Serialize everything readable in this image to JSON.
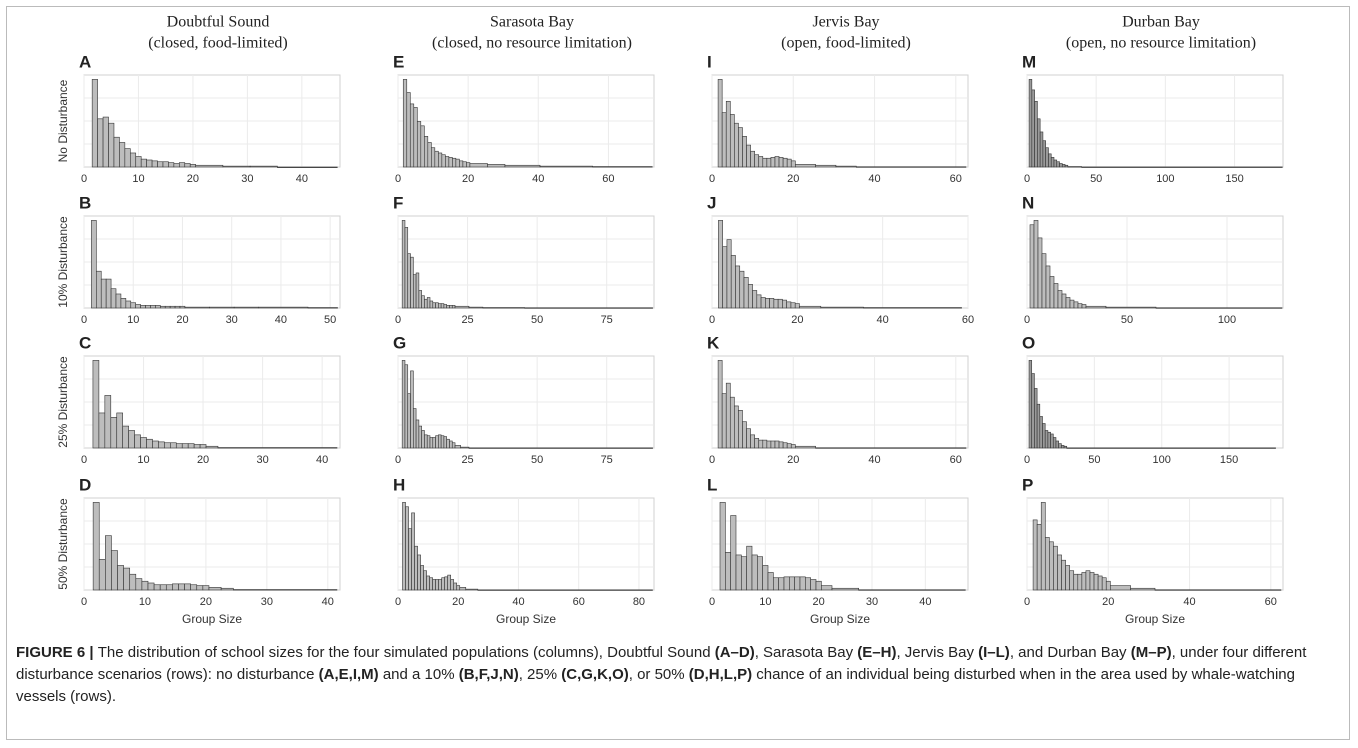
{
  "figure": {
    "columns": [
      {
        "title": "Doubtful Sound",
        "subtitle": "(closed, food-limited)"
      },
      {
        "title": "Sarasota Bay",
        "subtitle": "(closed, no resource limitation)"
      },
      {
        "title": "Jervis Bay",
        "subtitle": "(open, food-limited)"
      },
      {
        "title": "Durban Bay",
        "subtitle": "(open, no resource limitation)"
      }
    ],
    "rows": [
      "No Disturbance",
      "10% Disturbance",
      "25% Disturbance",
      "50% Disturbance"
    ],
    "x_label": "Group Size",
    "caption": [
      {
        "text": "FIGURE 6 | ",
        "bold": true
      },
      {
        "text": "The distribution of school sizes for the four simulated populations (columns), Doubtful Sound ",
        "bold": false
      },
      {
        "text": "(A–D)",
        "bold": true
      },
      {
        "text": ", Sarasota Bay ",
        "bold": false
      },
      {
        "text": "(E–H)",
        "bold": true
      },
      {
        "text": ", Jervis Bay ",
        "bold": false
      },
      {
        "text": "(I–L)",
        "bold": true
      },
      {
        "text": ", and Durban Bay ",
        "bold": false
      },
      {
        "text": "(M–P)",
        "bold": true
      },
      {
        "text": ", under four different disturbance scenarios (rows): no disturbance ",
        "bold": false
      },
      {
        "text": "(A,E,I,M)",
        "bold": true
      },
      {
        "text": " and a 10% ",
        "bold": false
      },
      {
        "text": "(B,F,J,N)",
        "bold": true
      },
      {
        "text": ", 25% ",
        "bold": false
      },
      {
        "text": "(C,G,K,O)",
        "bold": true
      },
      {
        "text": ", or 50% ",
        "bold": false
      },
      {
        "text": "(D,H,L,P)",
        "bold": true
      },
      {
        "text": " chance of an individual being disturbed when in the area used by whale-watching vessels (rows).",
        "bold": false
      }
    ]
  },
  "chart_data": [
    {
      "type": "histogram",
      "panel": "A",
      "color": "#bdbdbd",
      "grid": true,
      "xlim": [
        0,
        47
      ],
      "xticks": [
        0,
        10,
        20,
        30,
        40
      ],
      "ylim": [
        0,
        105
      ],
      "bins": [
        1.5,
        2.5,
        3.5,
        4.5,
        5.5,
        6.5,
        7.5,
        8.5,
        9.5,
        10.5,
        11.5,
        12.5,
        13.5,
        14.5,
        15.5,
        16.5,
        17.5,
        18.5,
        19.5,
        20.5,
        25.5,
        30.5,
        35.5,
        46.5
      ],
      "counts": [
        100,
        55,
        57,
        50,
        34,
        28,
        21,
        16,
        12,
        9,
        8,
        7,
        6,
        6,
        5,
        4,
        5,
        4,
        3,
        2,
        1,
        1,
        0
      ]
    },
    {
      "type": "histogram",
      "panel": "B",
      "color": "#bdbdbd",
      "grid": true,
      "xlim": [
        0,
        52
      ],
      "xticks": [
        0,
        10,
        20,
        30,
        40,
        50
      ],
      "ylim": [
        0,
        105
      ],
      "bins": [
        1.5,
        2.5,
        3.5,
        4.5,
        5.5,
        6.5,
        7.5,
        8.5,
        9.5,
        10.5,
        11.5,
        12.5,
        13.5,
        14.5,
        15.5,
        16.5,
        17.5,
        18.5,
        19.5,
        20.5,
        25.5,
        30.5,
        35.5,
        45.5,
        51.5
      ],
      "counts": [
        100,
        42,
        33,
        33,
        22,
        16,
        11,
        8,
        6,
        4,
        3,
        3,
        3,
        3,
        2,
        2,
        2,
        2,
        2,
        1,
        1,
        1,
        1,
        0.5
      ]
    },
    {
      "type": "histogram",
      "panel": "C",
      "color": "#bdbdbd",
      "grid": true,
      "xlim": [
        0,
        43
      ],
      "xticks": [
        0,
        10,
        20,
        30,
        40
      ],
      "ylim": [
        0,
        105
      ],
      "bins": [
        1.5,
        2.5,
        3.5,
        4.5,
        5.5,
        6.5,
        7.5,
        8.5,
        9.5,
        10.5,
        11.5,
        12.5,
        13.5,
        14.5,
        15.5,
        16.5,
        17.5,
        18.5,
        19.5,
        20.5,
        22.5,
        42.5
      ],
      "counts": [
        100,
        40,
        60,
        35,
        40,
        25,
        20,
        15,
        12,
        10,
        8,
        7,
        6,
        6,
        5,
        5,
        5,
        4,
        4,
        2,
        0.5
      ]
    },
    {
      "type": "histogram",
      "panel": "D",
      "color": "#bdbdbd",
      "grid": true,
      "xlim": [
        0,
        42
      ],
      "xticks": [
        0,
        10,
        20,
        30,
        40
      ],
      "ylim": [
        0,
        105
      ],
      "bins": [
        1.5,
        2.5,
        3.5,
        4.5,
        5.5,
        6.5,
        7.5,
        8.5,
        9.5,
        10.5,
        11.5,
        12.5,
        13.5,
        14.5,
        15.5,
        16.5,
        17.5,
        18.5,
        19.5,
        20.5,
        22.5,
        24.5,
        41.5
      ],
      "counts": [
        100,
        35,
        62,
        45,
        28,
        25,
        18,
        13,
        10,
        8,
        6,
        6,
        6,
        7,
        7,
        7,
        6,
        5,
        5,
        3,
        2,
        0.5
      ]
    },
    {
      "type": "histogram",
      "panel": "E",
      "color": "#bdbdbd",
      "grid": true,
      "xlim": [
        0,
        73
      ],
      "xticks": [
        0,
        20,
        40,
        60
      ],
      "ylim": [
        0,
        105
      ],
      "bins": [
        1.5,
        2.5,
        3.5,
        4.5,
        5.5,
        6.5,
        7.5,
        8.5,
        9.5,
        10.5,
        11.5,
        12.5,
        13.5,
        14.5,
        15.5,
        16.5,
        17.5,
        18.5,
        19.5,
        20.5,
        25.5,
        30.5,
        40.5,
        55.5,
        72.5
      ],
      "counts": [
        100,
        85,
        72,
        68,
        52,
        47,
        35,
        28,
        22,
        18,
        16,
        14,
        12,
        11,
        10,
        9,
        7,
        6,
        5,
        4,
        3,
        2,
        1,
        0.5
      ]
    },
    {
      "type": "histogram",
      "panel": "F",
      "color": "#bdbdbd",
      "grid": true,
      "xlim": [
        0,
        92
      ],
      "xticks": [
        0,
        25,
        50,
        75
      ],
      "ylim": [
        0,
        105
      ],
      "bins": [
        1.5,
        2.5,
        3.5,
        4.5,
        5.5,
        6.5,
        7.5,
        8.5,
        9.5,
        10.5,
        11.5,
        12.5,
        13.5,
        14.5,
        15.5,
        16.5,
        17.5,
        18.5,
        19.5,
        20.5,
        25.5,
        30.5,
        45.5,
        91.5
      ],
      "counts": [
        100,
        92,
        62,
        58,
        38,
        40,
        20,
        14,
        10,
        12,
        8,
        6,
        6,
        5,
        5,
        4,
        3,
        3,
        3,
        2,
        1,
        0.5,
        0.3
      ]
    },
    {
      "type": "histogram",
      "panel": "G",
      "color": "#bdbdbd",
      "grid": true,
      "xlim": [
        0,
        92
      ],
      "xticks": [
        0,
        25,
        50,
        75
      ],
      "ylim": [
        0,
        105
      ],
      "bins": [
        1.5,
        2.5,
        3.5,
        4.5,
        5.5,
        6.5,
        7.5,
        8.5,
        9.5,
        10.5,
        11.5,
        12.5,
        13.5,
        14.5,
        15.5,
        16.5,
        17.5,
        18.5,
        19.5,
        20.5,
        22.5,
        25.5,
        91.5
      ],
      "counts": [
        100,
        95,
        62,
        88,
        45,
        32,
        25,
        20,
        15,
        14,
        12,
        12,
        14,
        15,
        14,
        13,
        10,
        8,
        6,
        3,
        1,
        0.2
      ]
    },
    {
      "type": "histogram",
      "panel": "H",
      "color": "#bdbdbd",
      "grid": true,
      "xlim": [
        0,
        85
      ],
      "xticks": [
        0,
        20,
        40,
        60,
        80
      ],
      "ylim": [
        0,
        105
      ],
      "bins": [
        1.5,
        2.5,
        3.5,
        4.5,
        5.5,
        6.5,
        7.5,
        8.5,
        9.5,
        10.5,
        11.5,
        12.5,
        13.5,
        14.5,
        15.5,
        16.5,
        17.5,
        18.5,
        19.5,
        20.5,
        22.5,
        26.5,
        84.5
      ],
      "counts": [
        100,
        95,
        70,
        88,
        50,
        40,
        28,
        22,
        16,
        14,
        12,
        12,
        12,
        14,
        15,
        17,
        12,
        8,
        5,
        3,
        1,
        0.2
      ]
    },
    {
      "type": "histogram",
      "panel": "I",
      "color": "#bdbdbd",
      "grid": true,
      "xlim": [
        0,
        63
      ],
      "xticks": [
        0,
        20,
        40,
        60
      ],
      "ylim": [
        0,
        105
      ],
      "bins": [
        1.5,
        2.5,
        3.5,
        4.5,
        5.5,
        6.5,
        7.5,
        8.5,
        9.5,
        10.5,
        11.5,
        12.5,
        13.5,
        14.5,
        15.5,
        16.5,
        17.5,
        18.5,
        19.5,
        20.5,
        25.5,
        30.5,
        35.5,
        62.5
      ],
      "counts": [
        100,
        62,
        75,
        60,
        50,
        45,
        35,
        25,
        18,
        14,
        12,
        10,
        10,
        11,
        12,
        11,
        10,
        9,
        7,
        3,
        2,
        1,
        0.3
      ]
    },
    {
      "type": "histogram",
      "panel": "J",
      "color": "#bdbdbd",
      "grid": true,
      "xlim": [
        0,
        60
      ],
      "xticks": [
        0,
        20,
        40,
        60
      ],
      "ylim": [
        0,
        105
      ],
      "bins": [
        1.5,
        2.5,
        3.5,
        4.5,
        5.5,
        6.5,
        7.5,
        8.5,
        9.5,
        10.5,
        11.5,
        12.5,
        13.5,
        14.5,
        15.5,
        16.5,
        17.5,
        18.5,
        19.5,
        20.5,
        25.5,
        35.5,
        58.5
      ],
      "counts": [
        100,
        70,
        78,
        60,
        48,
        42,
        35,
        27,
        20,
        15,
        12,
        11,
        11,
        10,
        10,
        9,
        7,
        6,
        5,
        2,
        1,
        0.5
      ]
    },
    {
      "type": "histogram",
      "panel": "K",
      "color": "#bdbdbd",
      "grid": true,
      "xlim": [
        0,
        63
      ],
      "xticks": [
        0,
        20,
        40,
        60
      ],
      "ylim": [
        0,
        105
      ],
      "bins": [
        1.5,
        2.5,
        3.5,
        4.5,
        5.5,
        6.5,
        7.5,
        8.5,
        9.5,
        10.5,
        11.5,
        12.5,
        13.5,
        14.5,
        15.5,
        16.5,
        17.5,
        18.5,
        19.5,
        20.5,
        25.5,
        62.5
      ],
      "counts": [
        100,
        62,
        74,
        58,
        48,
        43,
        30,
        22,
        15,
        11,
        9,
        9,
        8,
        8,
        8,
        7,
        6,
        5,
        4,
        2,
        0.3
      ]
    },
    {
      "type": "histogram",
      "panel": "L",
      "color": "#bdbdbd",
      "grid": true,
      "xlim": [
        0,
        48
      ],
      "xticks": [
        0,
        10,
        20,
        30,
        40
      ],
      "ylim": [
        0,
        105
      ],
      "bins": [
        1.5,
        2.5,
        3.5,
        4.5,
        5.5,
        6.5,
        7.5,
        8.5,
        9.5,
        10.5,
        11.5,
        12.5,
        13.5,
        14.5,
        15.5,
        16.5,
        17.5,
        18.5,
        19.5,
        20.5,
        22.5,
        27.5,
        47.5
      ],
      "counts": [
        100,
        43,
        85,
        40,
        38,
        50,
        40,
        38,
        28,
        20,
        14,
        14,
        15,
        15,
        15,
        15,
        14,
        12,
        10,
        5,
        2,
        0.3
      ]
    },
    {
      "type": "histogram",
      "panel": "M",
      "color": "#9a9a9a",
      "grid": true,
      "xlim": [
        0,
        185
      ],
      "xticks": [
        0,
        50,
        100,
        150
      ],
      "ylim": [
        0,
        105
      ],
      "bins": [
        1.5,
        3.5,
        5.5,
        7.5,
        9.5,
        11.5,
        13.5,
        15.5,
        17.5,
        19.5,
        21.5,
        23.5,
        25.5,
        27.5,
        29.5,
        39.5,
        184.5
      ],
      "counts": [
        100,
        88,
        75,
        55,
        40,
        30,
        22,
        15,
        11,
        8,
        6,
        4,
        3,
        2,
        0.5,
        0.1
      ]
    },
    {
      "type": "histogram",
      "panel": "N",
      "color": "#bdbdbd",
      "grid": true,
      "xlim": [
        0,
        128
      ],
      "xticks": [
        0,
        50,
        100
      ],
      "ylim": [
        0,
        105
      ],
      "bins": [
        1.5,
        3.5,
        5.5,
        7.5,
        9.5,
        11.5,
        13.5,
        15.5,
        17.5,
        19.5,
        21.5,
        23.5,
        25.5,
        27.5,
        29.5,
        39.5,
        64.5,
        127.5
      ],
      "counts": [
        95,
        100,
        80,
        62,
        48,
        36,
        28,
        20,
        16,
        12,
        9,
        7,
        5,
        4,
        2,
        1,
        0.3
      ]
    },
    {
      "type": "histogram",
      "panel": "O",
      "color": "#9a9a9a",
      "grid": true,
      "xlim": [
        0,
        190
      ],
      "xticks": [
        0,
        50,
        100,
        150
      ],
      "ylim": [
        0,
        105
      ],
      "bins": [
        1.5,
        3.5,
        5.5,
        7.5,
        9.5,
        11.5,
        13.5,
        15.5,
        17.5,
        19.5,
        21.5,
        23.5,
        25.5,
        27.5,
        29.5,
        184.5
      ],
      "counts": [
        100,
        85,
        68,
        50,
        36,
        28,
        20,
        18,
        16,
        12,
        8,
        5,
        3,
        2,
        0.2
      ]
    },
    {
      "type": "histogram",
      "panel": "P",
      "color": "#bdbdbd",
      "grid": true,
      "xlim": [
        0,
        63
      ],
      "xticks": [
        0,
        20,
        40,
        60
      ],
      "ylim": [
        0,
        105
      ],
      "bins": [
        1.5,
        2.5,
        3.5,
        4.5,
        5.5,
        6.5,
        7.5,
        8.5,
        9.5,
        10.5,
        11.5,
        12.5,
        13.5,
        14.5,
        15.5,
        16.5,
        17.5,
        18.5,
        19.5,
        20.5,
        25.5,
        31.5,
        62.5
      ],
      "counts": [
        80,
        75,
        100,
        60,
        55,
        50,
        40,
        34,
        28,
        22,
        18,
        18,
        20,
        22,
        20,
        18,
        16,
        14,
        10,
        5,
        2,
        0.3
      ]
    }
  ]
}
